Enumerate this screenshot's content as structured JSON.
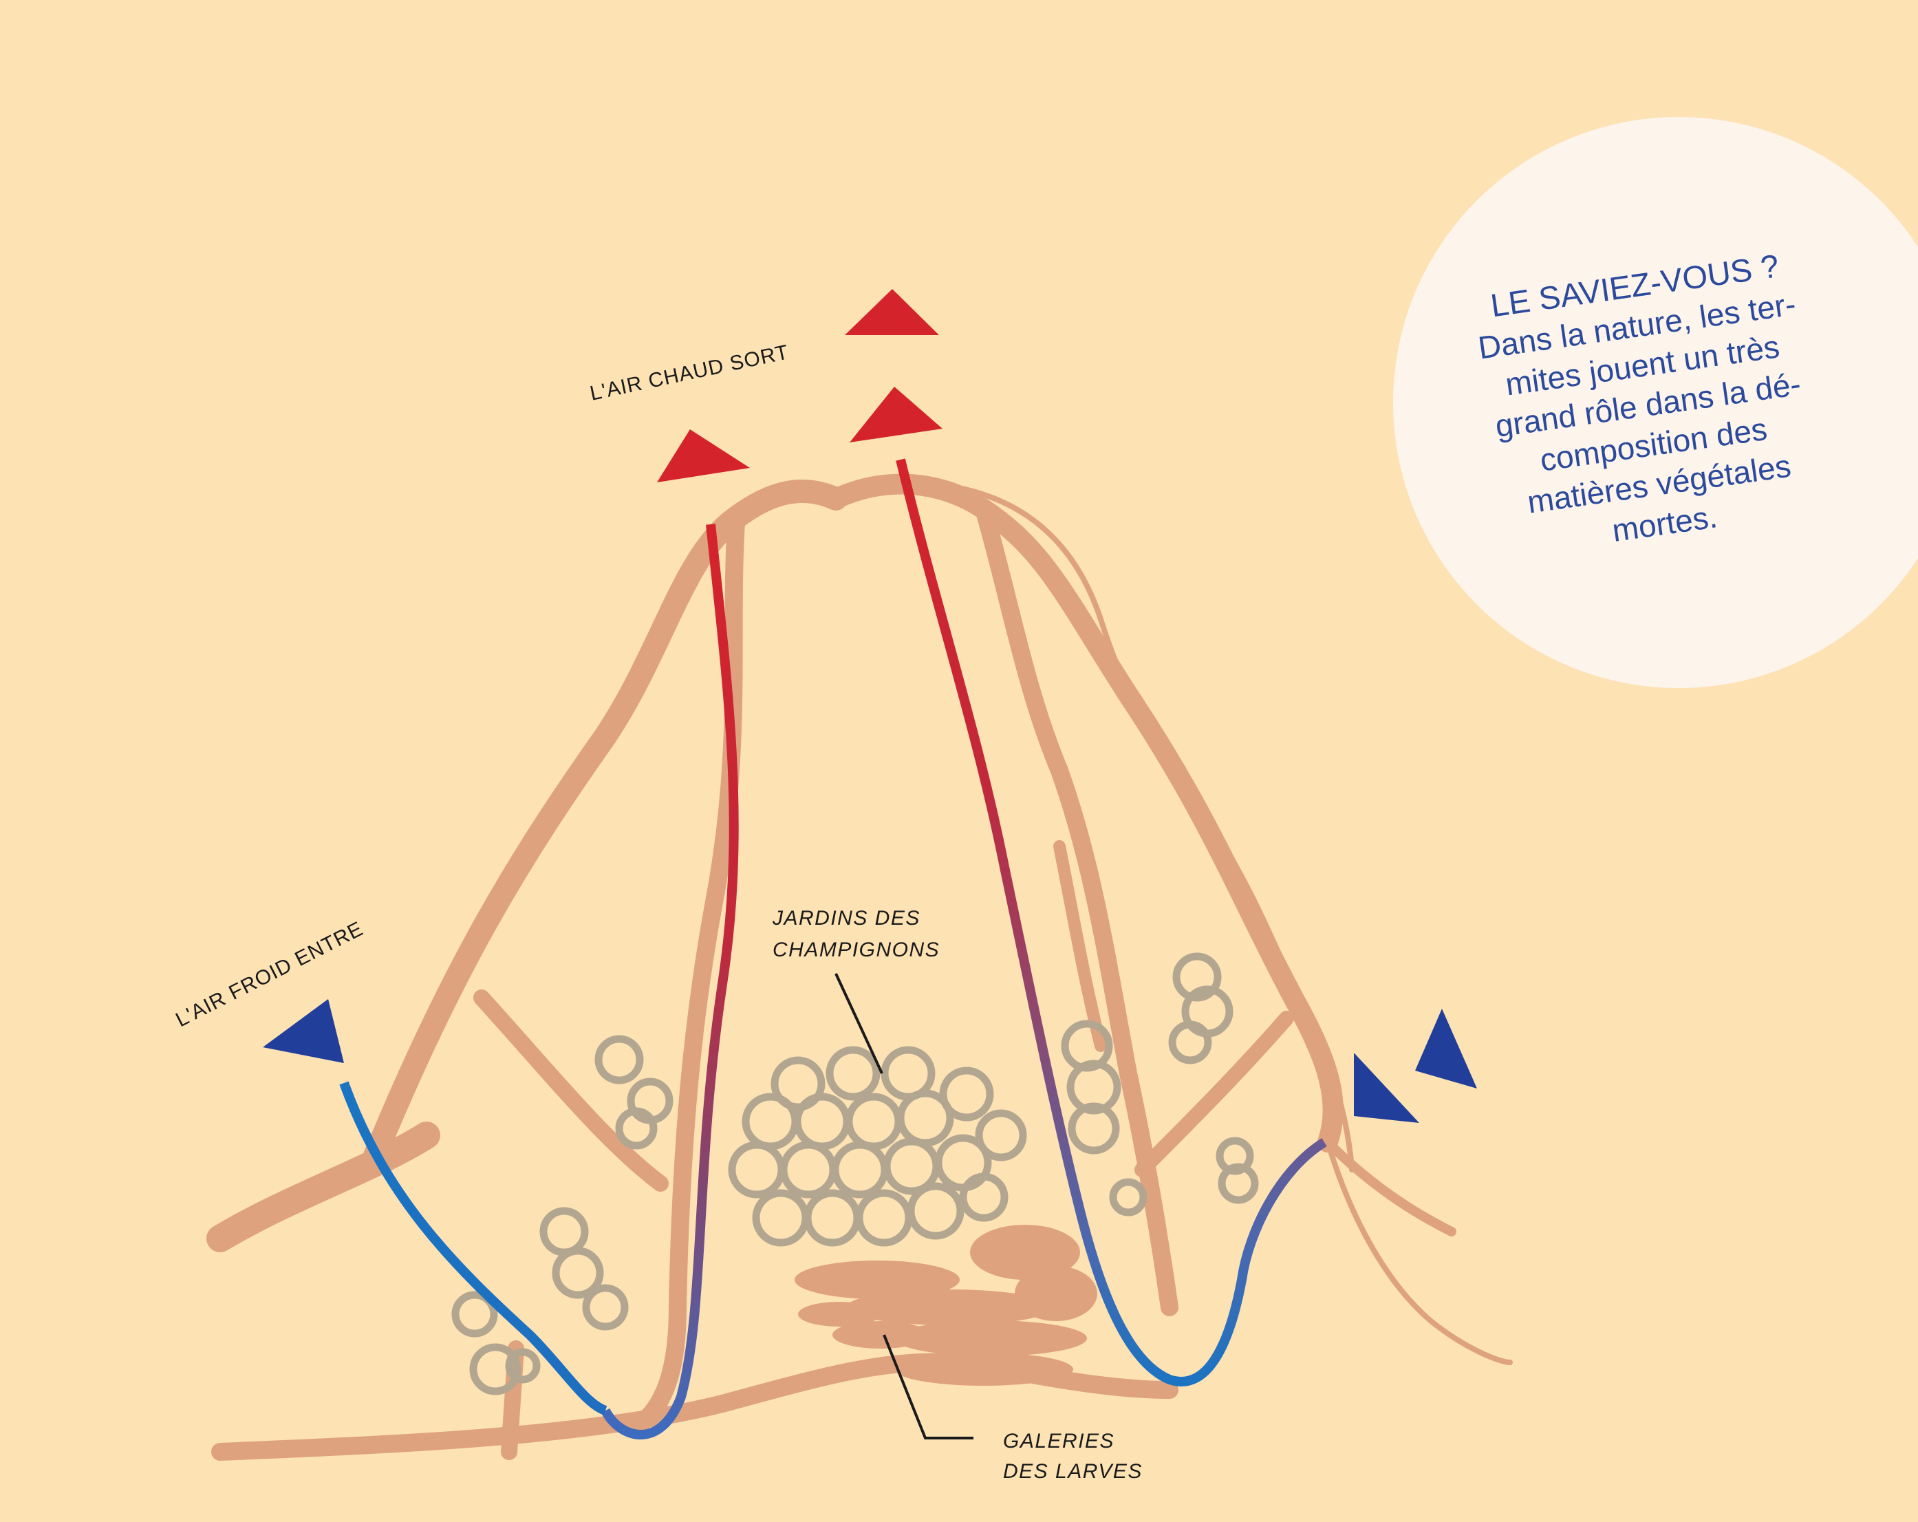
{
  "labels": {
    "hot_air_out": "L'AIR CHAUD SORT",
    "cold_air_in": "L'AIR FROID ENTRE",
    "fungus_gardens_line1": "JARDINS DES",
    "fungus_gardens_line2": "CHAMPIGNONS",
    "larvae_galleries_line1": "GALERIES",
    "larvae_galleries_line2": "DES LARVES"
  },
  "fact_box": {
    "title": "LE SAVIEZ-VOUS ?",
    "lines": [
      "Dans la nature, les ter-",
      "mites jouent un très",
      "grand rôle dans la dé-",
      "composition des",
      "matières végétales",
      "mortes."
    ]
  },
  "colors": {
    "background": "#fde2b4",
    "mound_tunnels": "#dea27f",
    "hot_air": "#d4232b",
    "cold_air": "#213f9a",
    "cold_air_flow": "#1b74c2",
    "fungus": "#b3a690",
    "fact_circle": "#fdf4ec",
    "fact_text": "#2c4a9c"
  },
  "icons": {
    "hot_air_arrow": "red-triangle-icon",
    "cold_air_arrow": "blue-triangle-icon"
  }
}
